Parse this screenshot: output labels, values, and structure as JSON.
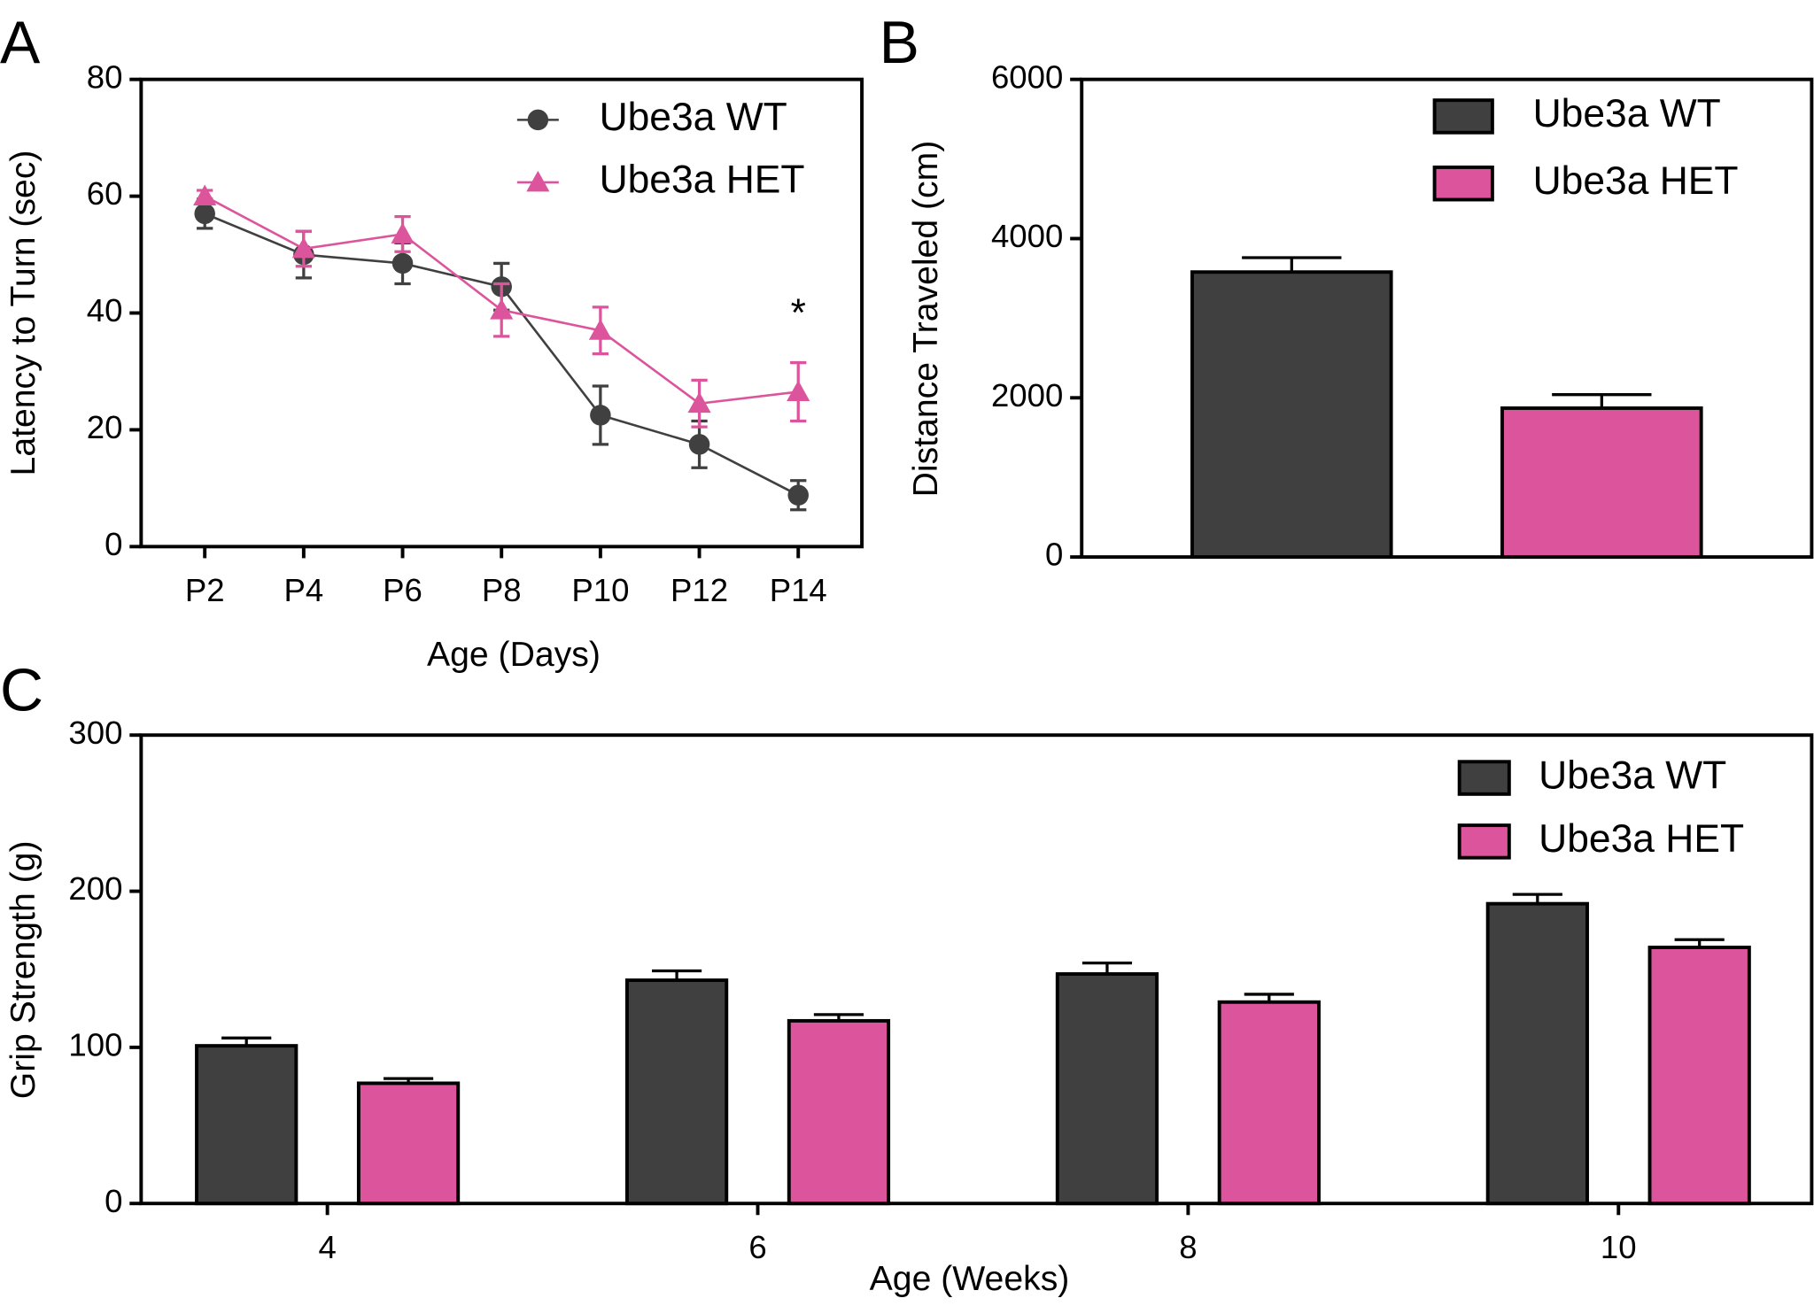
{
  "chart_data": [
    {
      "type": "line",
      "panel": "A",
      "xlabel": "Age (Days)",
      "ylabel": "Latency to Turn (sec)",
      "categories": [
        "P2",
        "P4",
        "P6",
        "P8",
        "P10",
        "P12",
        "P14"
      ],
      "series": [
        {
          "name": "Ube3a WT",
          "color": "#404040",
          "marker": "circle",
          "values": [
            57,
            50,
            48.5,
            44.5,
            22.5,
            17.5,
            8.8
          ],
          "errors": [
            2.5,
            4,
            3.5,
            4,
            5,
            4,
            2.5
          ]
        },
        {
          "name": "Ube3a HET",
          "color": "#dc559c",
          "marker": "triangle",
          "values": [
            60,
            51,
            53.5,
            40.5,
            37,
            24.5,
            26.5
          ],
          "errors": [
            1,
            3,
            3,
            4.5,
            4,
            4,
            5
          ]
        }
      ],
      "annotations": [
        "*"
      ],
      "ylim": [
        0,
        80
      ],
      "yticks": [
        0,
        20,
        40,
        60,
        80
      ],
      "legend": "upper right"
    },
    {
      "type": "bar",
      "panel": "B",
      "ylabel": "Distance Traveled (cm)",
      "categories": [
        null
      ],
      "series": [
        {
          "name": "Ube3a WT",
          "color": "#404040",
          "values": [
            3580
          ],
          "errors": [
            180
          ]
        },
        {
          "name": "Ube3a HET",
          "color": "#dc559c",
          "values": [
            1870
          ],
          "errors": [
            170
          ]
        }
      ],
      "ylim": [
        0,
        6000
      ],
      "yticks": [
        0,
        2000,
        4000,
        6000
      ],
      "legend": "upper right"
    },
    {
      "type": "bar",
      "panel": "C",
      "xlabel": "Age (Weeks)",
      "ylabel": "Grip Strength (g)",
      "categories": [
        "4",
        "6",
        "8",
        "10"
      ],
      "series": [
        {
          "name": "Ube3a WT",
          "color": "#404040",
          "values": [
            101,
            143,
            147,
            192
          ],
          "errors": [
            5,
            6,
            7,
            6
          ]
        },
        {
          "name": "Ube3a HET",
          "color": "#dc559c",
          "values": [
            77,
            117,
            129,
            164
          ],
          "errors": [
            3,
            4,
            5,
            5
          ]
        }
      ],
      "ylim": [
        0,
        300
      ],
      "yticks": [
        0,
        100,
        200,
        300
      ],
      "legend": "upper right"
    }
  ]
}
